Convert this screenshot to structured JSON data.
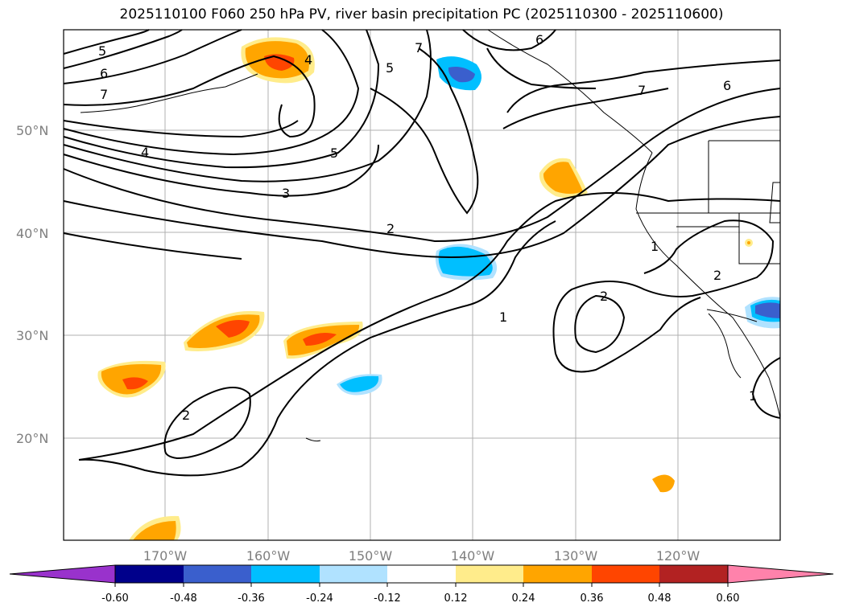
{
  "title": "2025110100 F060 250 hPa PV, river basin precipitation PC (2025110300 - 2025110600)",
  "map": {
    "lat_labels": [
      "50°N",
      "40°N",
      "30°N",
      "20°N"
    ],
    "lon_labels": [
      "170°W",
      "160°W",
      "150°W",
      "140°W",
      "130°W",
      "120°W"
    ],
    "contour_labels": [
      "5",
      "6",
      "7",
      "4",
      "6",
      "7",
      "5",
      "7",
      "6",
      "5",
      "4",
      "3",
      "2",
      "1",
      "1",
      "2",
      "2",
      "2",
      "1"
    ]
  },
  "colorbar": {
    "ticks": [
      "-0.60",
      "-0.48",
      "-0.36",
      "-0.24",
      "-0.12",
      "0.12",
      "0.24",
      "0.36",
      "0.48",
      "0.60"
    ],
    "colors": [
      "#9932cc",
      "#00008b",
      "#3a5fcd",
      "#00bfff",
      "#b0e2ff",
      "#ffffff",
      "#ffec8b",
      "#ffa500",
      "#ff4500",
      "#b22222",
      "#ff82ab"
    ]
  }
}
